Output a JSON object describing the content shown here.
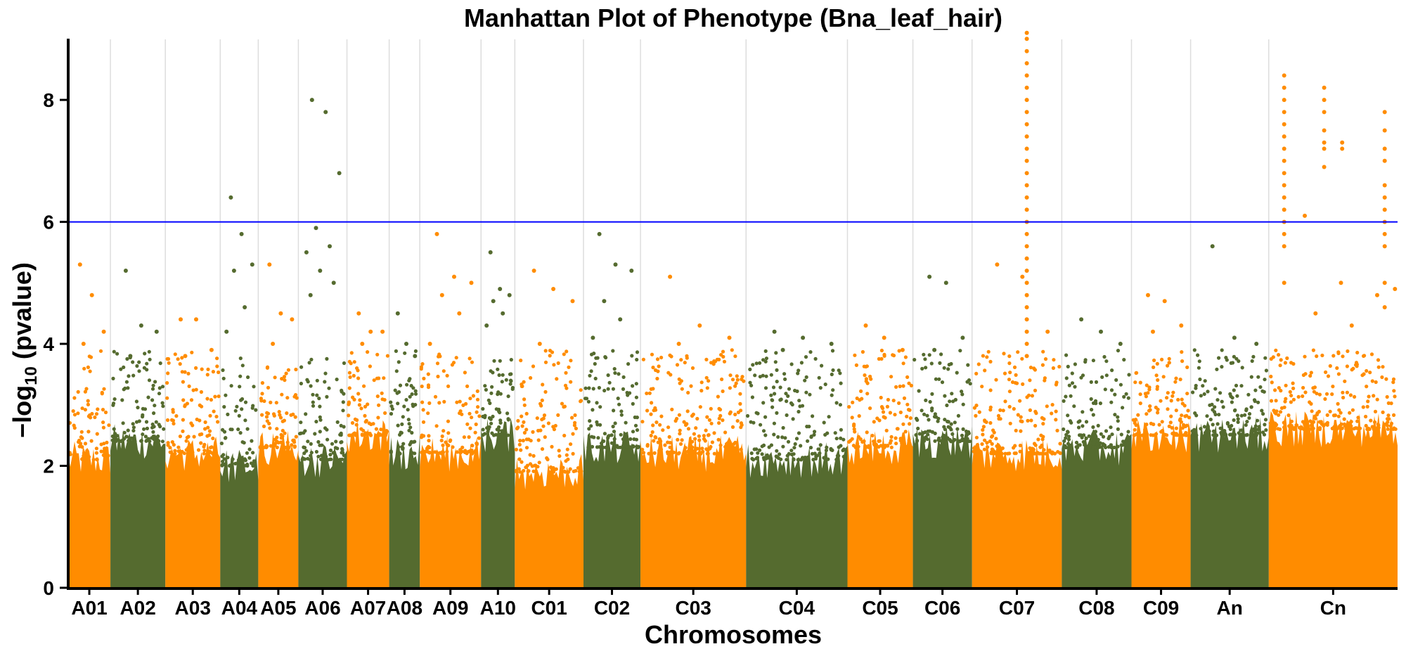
{
  "chart_data": {
    "type": "scatter",
    "title": "Manhattan Plot of Phenotype (Bna_leaf_hair)",
    "xlabel": "Chromosomes",
    "ylabel_prefix": "−log",
    "ylabel_sub": "10",
    "ylabel_suffix": " (pvalue)",
    "ylim": [
      0,
      9.2
    ],
    "yticks": [
      0,
      2,
      4,
      6,
      8
    ],
    "grid": "vertical",
    "threshold": 6,
    "colors": {
      "orange": "#ff8c00",
      "green": "#556b2f",
      "threshold": "#0000ff",
      "grid": "#dddddd"
    },
    "chromosomes": [
      {
        "name": "A01",
        "len": 4.0,
        "color": "orange",
        "base": 2.1,
        "peak": 3.0,
        "top": [
          5.3,
          4.8,
          4.2,
          4.0
        ]
      },
      {
        "name": "A02",
        "len": 5.2,
        "color": "green",
        "base": 2.4,
        "peak": 3.0,
        "top": [
          5.2,
          4.3,
          4.2,
          3.8
        ]
      },
      {
        "name": "A03",
        "len": 5.2,
        "color": "orange",
        "base": 2.2,
        "peak": 3.0,
        "top": [
          4.4,
          4.4,
          3.9,
          3.8
        ]
      },
      {
        "name": "A04",
        "len": 3.6,
        "color": "green",
        "base": 2.0,
        "peak": 3.0,
        "top": [
          6.4,
          5.8,
          5.3,
          5.2,
          4.6,
          4.2
        ]
      },
      {
        "name": "A05",
        "len": 3.8,
        "color": "orange",
        "base": 2.3,
        "peak": 2.8,
        "top": [
          5.3,
          4.5,
          4.4,
          4.0
        ]
      },
      {
        "name": "A06",
        "len": 4.6,
        "color": "green",
        "base": 2.1,
        "peak": 3.0,
        "top": [
          8.0,
          7.8,
          6.8,
          5.9,
          5.6,
          5.5,
          5.2,
          5.0,
          4.8
        ]
      },
      {
        "name": "A07",
        "len": 4.0,
        "color": "orange",
        "base": 2.5,
        "peak": 3.0,
        "top": [
          4.5,
          4.2,
          4.2,
          4.0
        ]
      },
      {
        "name": "A08",
        "len": 2.9,
        "color": "green",
        "base": 2.2,
        "peak": 3.0,
        "top": [
          4.5,
          4.0,
          3.8
        ]
      },
      {
        "name": "A09",
        "len": 5.8,
        "color": "orange",
        "base": 2.2,
        "peak": 3.0,
        "top": [
          5.8,
          5.1,
          5.0,
          4.8,
          4.5,
          4.0
        ]
      },
      {
        "name": "A10",
        "len": 3.2,
        "color": "green",
        "base": 2.5,
        "peak": 3.0,
        "top": [
          5.5,
          4.9,
          4.8,
          4.7,
          4.5,
          4.3
        ]
      },
      {
        "name": "C01",
        "len": 6.5,
        "color": "orange",
        "base": 1.9,
        "peak": 3.0,
        "top": [
          5.2,
          4.9,
          4.7,
          4.0
        ]
      },
      {
        "name": "C02",
        "len": 5.4,
        "color": "green",
        "base": 2.3,
        "peak": 3.0,
        "top": [
          5.8,
          5.3,
          5.2,
          4.7,
          4.4,
          4.1
        ]
      },
      {
        "name": "C03",
        "len": 10.0,
        "color": "orange",
        "base": 2.2,
        "peak": 3.0,
        "top": [
          5.1,
          4.3,
          4.1,
          4.0
        ]
      },
      {
        "name": "C04",
        "len": 9.6,
        "color": "green",
        "base": 2.1,
        "peak": 3.0,
        "top": [
          4.2,
          4.1,
          4.0,
          3.9
        ]
      },
      {
        "name": "C05",
        "len": 6.2,
        "color": "orange",
        "base": 2.3,
        "peak": 3.0,
        "top": [
          4.3,
          4.1,
          3.9
        ]
      },
      {
        "name": "C06",
        "len": 5.6,
        "color": "green",
        "base": 2.4,
        "peak": 3.0,
        "top": [
          5.1,
          5.0,
          4.1,
          3.9
        ]
      },
      {
        "name": "C07",
        "len": 8.5,
        "color": "orange",
        "base": 2.2,
        "peak": 3.0,
        "top": [
          5.3,
          5.1,
          4.2
        ]
      },
      {
        "name": "C08",
        "len": 6.6,
        "color": "green",
        "base": 2.3,
        "peak": 3.0,
        "top": [
          4.4,
          4.2,
          4.0
        ]
      },
      {
        "name": "C09",
        "len": 5.6,
        "color": "orange",
        "base": 2.5,
        "peak": 3.0,
        "top": [
          4.8,
          4.7,
          4.3,
          4.2
        ]
      },
      {
        "name": "An",
        "len": 7.4,
        "color": "green",
        "base": 2.5,
        "peak": 3.0,
        "top": [
          5.6,
          4.1,
          4.0
        ]
      },
      {
        "name": "Cn",
        "len": 12.2,
        "color": "orange",
        "base": 2.6,
        "peak": 3.0,
        "top": [
          6.1,
          5.0,
          4.8,
          4.5,
          4.3
        ]
      }
    ],
    "signal_columns": [
      {
        "chromosome": "C07",
        "position": 0.61,
        "values": [
          9.1,
          9.0,
          8.8,
          8.6,
          8.4,
          8.2,
          8.0,
          7.8,
          7.6,
          7.4,
          7.2,
          7.0,
          6.8,
          6.6,
          6.4,
          6.2,
          6.0,
          5.8,
          5.6,
          5.4,
          5.2,
          5.0,
          4.8,
          4.6,
          4.4,
          4.2,
          4.0,
          3.8
        ]
      },
      {
        "chromosome": "Cn",
        "position": 0.12,
        "values": [
          8.4,
          8.2,
          8.0,
          7.8,
          7.6,
          7.4,
          7.2,
          7.0,
          6.8,
          6.6,
          6.4,
          6.2,
          6.0,
          5.8,
          5.6,
          5.0
        ]
      },
      {
        "chromosome": "Cn",
        "position": 0.43,
        "values": [
          8.2,
          8.0,
          7.8,
          7.5,
          7.3,
          7.2,
          6.9
        ]
      },
      {
        "chromosome": "Cn",
        "position": 0.57,
        "values": [
          7.3,
          7.2
        ]
      },
      {
        "chromosome": "Cn",
        "position": 0.9,
        "values": [
          7.8,
          7.5,
          7.2,
          7.0,
          6.6,
          6.4,
          6.2,
          6.0,
          5.8,
          5.6,
          5.0,
          4.6
        ]
      },
      {
        "chromosome": "Cn",
        "position": 0.98,
        "values": [
          4.9
        ]
      }
    ]
  }
}
